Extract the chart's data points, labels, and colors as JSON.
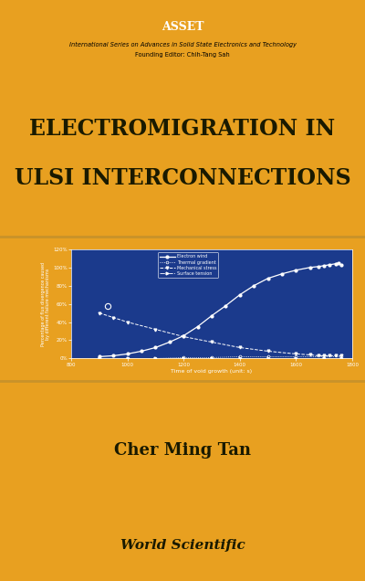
{
  "background_color": "#E8A020",
  "blue_bg": "#1B3A8C",
  "series_label_top": "ASSET",
  "series_label_sub": "International Series on Advances in Solid State Electronics and Technology",
  "series_label_editor": "Founding Editor: Chih-Tang Sah",
  "title_line1": "ELECTROMIGRATION IN",
  "title_line2": "ULSI INTERCONNECTIONS",
  "author": "Cher Ming Tan",
  "publisher": "World Scientific",
  "chart_bg": "#1B3A8C",
  "chart_xlabel": "Time of void growth (unit: s)",
  "chart_ylabel": "Percentage of flux divergence caused\nby different failure mechanisms",
  "xlim": [
    800,
    1800
  ],
  "ylim": [
    0,
    120
  ],
  "yticks": [
    0,
    20,
    40,
    60,
    80,
    100,
    120
  ],
  "ytick_labels": [
    "0%",
    "20%",
    "40%",
    "60%",
    "80%",
    "100%",
    "120%"
  ],
  "xticks": [
    800,
    1000,
    1200,
    1400,
    1600,
    1800
  ],
  "legend_entries": [
    "Electron wind",
    "Thermal gradient",
    "Mechanical stress",
    "Surface tension"
  ],
  "electron_wind_x": [
    900,
    950,
    1000,
    1050,
    1100,
    1150,
    1200,
    1250,
    1300,
    1350,
    1400,
    1450,
    1500,
    1550,
    1600,
    1650,
    1680,
    1700,
    1720,
    1740,
    1750,
    1760
  ],
  "electron_wind_y": [
    2,
    3,
    5,
    8,
    12,
    18,
    25,
    35,
    47,
    58,
    70,
    80,
    88,
    93,
    97,
    100,
    101,
    102,
    103,
    104,
    105,
    103
  ],
  "thermal_x": [
    900,
    1000,
    1100,
    1200,
    1300,
    1400,
    1500,
    1600,
    1700,
    1760
  ],
  "thermal_y": [
    0,
    0,
    0,
    1,
    1,
    2,
    2,
    2,
    2,
    2
  ],
  "mechanical_x": [
    900,
    950,
    1000,
    1100,
    1200,
    1300,
    1400,
    1500,
    1600,
    1650,
    1680,
    1700,
    1720,
    1740,
    1760
  ],
  "mechanical_y": [
    50,
    45,
    40,
    32,
    24,
    18,
    12,
    8,
    5,
    4,
    3,
    3,
    3,
    3,
    3
  ],
  "surface_x": [
    900,
    1000,
    1100,
    1200,
    1300,
    1400,
    1500,
    1600,
    1700,
    1760
  ],
  "surface_y": [
    0,
    0,
    0,
    0,
    0,
    0,
    0,
    0,
    0,
    0
  ],
  "electron_single_x": [
    930
  ],
  "electron_single_y": [
    58
  ],
  "line_color": "#ffffff",
  "separator_color": "#C8922A",
  "title_color": "#1A1A00"
}
